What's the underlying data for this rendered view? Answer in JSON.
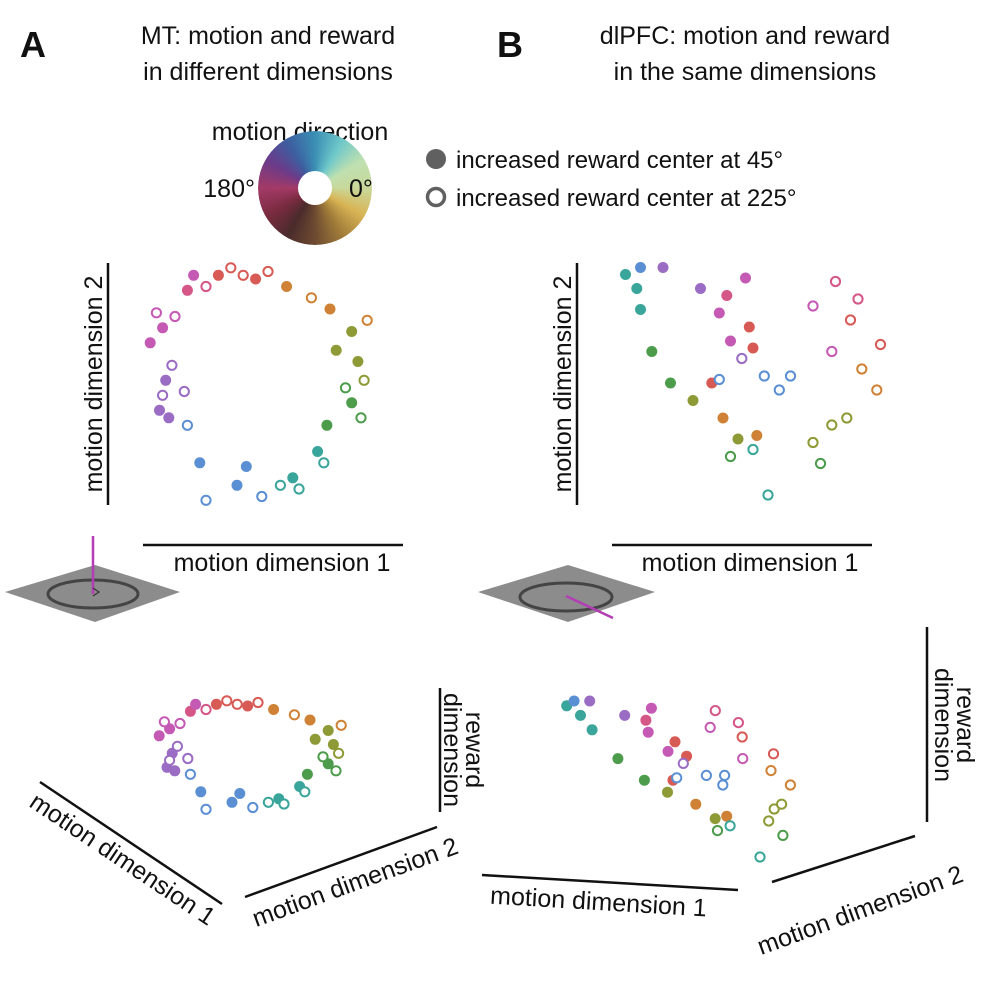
{
  "panels": {
    "A": {
      "letter": "A",
      "title_line1": "MT: motion and reward",
      "title_line2": "in different dimensions"
    },
    "B": {
      "letter": "B",
      "title_line1": "dlPFC: motion and reward",
      "title_line2": "in the same dimensions"
    }
  },
  "color_wheel": {
    "title": "motion direction",
    "label_180": "180°",
    "label_0": "0°"
  },
  "legend": {
    "filled": "increased reward center at 45°",
    "open": "increased reward center at 225°",
    "marker_color": "#606060"
  },
  "axes": {
    "motion_dim_1": "motion dimension 1",
    "motion_dim_2": "motion dimension 2",
    "reward_line1": "reward",
    "reward_line2": "dimension"
  },
  "colors": {
    "magenta": "#c55ab5",
    "purple": "#9a6cc3",
    "blue": "#5b8fd3",
    "teal": "#3aa59a",
    "green": "#4c9c4c",
    "olive": "#8e9a35",
    "orange": "#cf8236",
    "red": "#d85a55",
    "pink": "#d55788",
    "plane": "#8c8c8c",
    "stick": "#b43cb4"
  },
  "chart_data": [
    {
      "type": "scatter",
      "title": "MT: motion and reward in different dimensions",
      "xlabel": "motion dimension 1",
      "ylabel": "motion dimension 2",
      "view": "2D projection",
      "series": [
        {
          "name": "increased reward center at 45°",
          "marker": "filled",
          "points": [
            [
              -1.9,
              0.55,
              "magenta"
            ],
            [
              -1.7,
              0.75,
              "magenta"
            ],
            [
              -1.3,
              1.25,
              "pink"
            ],
            [
              -0.8,
              1.45,
              "red"
            ],
            [
              -0.2,
              1.4,
              "red"
            ],
            [
              0.3,
              1.3,
              "orange"
            ],
            [
              1.0,
              1.0,
              "orange"
            ],
            [
              1.35,
              0.7,
              "olive"
            ],
            [
              1.45,
              0.3,
              "olive"
            ],
            [
              1.35,
              -0.25,
              "green"
            ],
            [
              0.8,
              -0.9,
              "teal"
            ],
            [
              0.4,
              -1.25,
              "teal"
            ],
            [
              -0.5,
              -1.35,
              "blue"
            ],
            [
              -1.1,
              -1.05,
              "blue"
            ],
            [
              -1.6,
              -0.45,
              "purple"
            ],
            [
              -1.65,
              0.05,
              "purple"
            ],
            [
              -1.75,
              -0.35,
              "purple"
            ],
            [
              -1.2,
              1.45,
              "magenta"
            ],
            [
              1.1,
              0.45,
              "olive"
            ],
            [
              0.95,
              -0.55,
              "green"
            ],
            [
              -0.35,
              -1.1,
              "blue"
            ]
          ]
        },
        {
          "name": "increased reward center at 225°",
          "marker": "open",
          "points": [
            [
              -1.8,
              0.95,
              "magenta"
            ],
            [
              -1.5,
              0.9,
              "magenta"
            ],
            [
              -1.0,
              1.3,
              "pink"
            ],
            [
              -0.6,
              1.55,
              "red"
            ],
            [
              0.0,
              1.5,
              "red"
            ],
            [
              0.7,
              1.15,
              "orange"
            ],
            [
              1.6,
              0.85,
              "orange"
            ],
            [
              1.55,
              0.05,
              "olive"
            ],
            [
              1.5,
              -0.45,
              "green"
            ],
            [
              0.9,
              -1.05,
              "teal"
            ],
            [
              0.5,
              -1.4,
              "teal"
            ],
            [
              -0.1,
              -1.5,
              "blue"
            ],
            [
              -1.0,
              -1.55,
              "blue"
            ],
            [
              -1.3,
              -0.55,
              "blue"
            ],
            [
              -1.55,
              0.25,
              "purple"
            ],
            [
              -1.35,
              -0.1,
              "purple"
            ],
            [
              -1.7,
              -0.15,
              "purple"
            ],
            [
              0.2,
              -1.35,
              "teal"
            ],
            [
              1.25,
              -0.05,
              "green"
            ],
            [
              -0.4,
              1.45,
              "red"
            ]
          ]
        }
      ]
    },
    {
      "type": "scatter",
      "title": "dlPFC: motion and reward in the same dimensions",
      "xlabel": "motion dimension 1",
      "ylabel": "motion dimension 2",
      "view": "2D projection",
      "series": [
        {
          "name": "increased reward center at 45°",
          "marker": "filled",
          "points": [
            [
              -1.9,
              1.65,
              "teal"
            ],
            [
              -1.7,
              1.75,
              "blue"
            ],
            [
              -1.75,
              1.45,
              "teal"
            ],
            [
              -1.4,
              1.75,
              "purple"
            ],
            [
              -0.9,
              1.45,
              "purple"
            ],
            [
              -0.65,
              1.1,
              "magenta"
            ],
            [
              -0.55,
              1.35,
              "pink"
            ],
            [
              -0.3,
              1.6,
              "magenta"
            ],
            [
              -0.2,
              0.6,
              "red"
            ],
            [
              -1.55,
              0.55,
              "green"
            ],
            [
              -1.3,
              0.1,
              "green"
            ],
            [
              -1.0,
              -0.15,
              "olive"
            ],
            [
              -0.75,
              0.1,
              "red"
            ],
            [
              -0.6,
              -0.4,
              "orange"
            ],
            [
              -0.4,
              -0.7,
              "olive"
            ],
            [
              -0.15,
              -0.65,
              "orange"
            ],
            [
              -1.7,
              1.15,
              "teal"
            ],
            [
              -0.25,
              0.9,
              "red"
            ],
            [
              -0.5,
              0.7,
              "magenta"
            ]
          ]
        },
        {
          "name": "increased reward center at 225°",
          "marker": "open",
          "points": [
            [
              0.6,
              1.2,
              "magenta"
            ],
            [
              0.9,
              1.55,
              "pink"
            ],
            [
              1.2,
              1.3,
              "pink"
            ],
            [
              1.5,
              0.65,
              "red"
            ],
            [
              0.85,
              0.55,
              "magenta"
            ],
            [
              1.25,
              0.3,
              "orange"
            ],
            [
              1.45,
              0.0,
              "orange"
            ],
            [
              0.85,
              -0.5,
              "olive"
            ],
            [
              0.6,
              -0.75,
              "olive"
            ],
            [
              0.3,
              0.2,
              "blue"
            ],
            [
              -0.05,
              0.2,
              "blue"
            ],
            [
              -0.35,
              0.45,
              "purple"
            ],
            [
              -0.2,
              -0.85,
              "teal"
            ],
            [
              -0.5,
              -0.95,
              "green"
            ],
            [
              0.0,
              -1.5,
              "teal"
            ],
            [
              0.15,
              0.0,
              "blue"
            ],
            [
              1.05,
              -0.4,
              "olive"
            ],
            [
              0.7,
              -1.05,
              "green"
            ],
            [
              -0.65,
              0.15,
              "blue"
            ],
            [
              1.1,
              1.0,
              "red"
            ]
          ]
        }
      ]
    },
    {
      "type": "scatter",
      "title": "MT: motion and reward in different dimensions (3D view)",
      "xlabel": "motion dimension 1",
      "ylabel": "motion dimension 2",
      "zlabel": "reward dimension",
      "view": "3D projection",
      "series": [
        {
          "name": "increased reward center at 45°",
          "marker": "filled",
          "points": [
            [
              -1.9,
              0.55,
              "magenta"
            ],
            [
              -1.7,
              0.75,
              "magenta"
            ],
            [
              -1.3,
              1.25,
              "pink"
            ],
            [
              -0.8,
              1.45,
              "red"
            ],
            [
              -0.2,
              1.4,
              "red"
            ],
            [
              0.3,
              1.3,
              "orange"
            ],
            [
              1.0,
              1.0,
              "orange"
            ],
            [
              1.35,
              0.7,
              "olive"
            ],
            [
              1.45,
              0.3,
              "olive"
            ],
            [
              1.35,
              -0.25,
              "green"
            ],
            [
              0.8,
              -0.9,
              "teal"
            ],
            [
              0.4,
              -1.25,
              "teal"
            ],
            [
              -0.5,
              -1.35,
              "blue"
            ],
            [
              -1.1,
              -1.05,
              "blue"
            ],
            [
              -1.6,
              -0.45,
              "purple"
            ],
            [
              -1.65,
              0.05,
              "purple"
            ],
            [
              -1.75,
              -0.35,
              "purple"
            ],
            [
              -1.2,
              1.45,
              "magenta"
            ],
            [
              1.1,
              0.45,
              "olive"
            ],
            [
              0.95,
              -0.55,
              "green"
            ],
            [
              -0.35,
              -1.1,
              "blue"
            ]
          ]
        },
        {
          "name": "increased reward center at 225°",
          "marker": "open",
          "points": [
            [
              -1.8,
              0.95,
              "magenta"
            ],
            [
              -1.5,
              0.9,
              "magenta"
            ],
            [
              -1.0,
              1.3,
              "pink"
            ],
            [
              -0.6,
              1.55,
              "red"
            ],
            [
              0.0,
              1.5,
              "red"
            ],
            [
              0.7,
              1.15,
              "orange"
            ],
            [
              1.6,
              0.85,
              "orange"
            ],
            [
              1.55,
              0.05,
              "olive"
            ],
            [
              1.5,
              -0.45,
              "green"
            ],
            [
              0.9,
              -1.05,
              "teal"
            ],
            [
              0.5,
              -1.4,
              "teal"
            ],
            [
              -0.1,
              -1.5,
              "blue"
            ],
            [
              -1.0,
              -1.55,
              "blue"
            ],
            [
              -1.3,
              -0.55,
              "blue"
            ],
            [
              -1.55,
              0.25,
              "purple"
            ],
            [
              -1.35,
              -0.1,
              "purple"
            ],
            [
              -1.7,
              -0.15,
              "purple"
            ],
            [
              0.2,
              -1.35,
              "teal"
            ],
            [
              1.25,
              -0.05,
              "green"
            ],
            [
              -0.4,
              1.45,
              "red"
            ]
          ]
        }
      ]
    },
    {
      "type": "scatter",
      "title": "dlPFC: motion and reward in the same dimensions (3D view)",
      "xlabel": "motion dimension 1",
      "ylabel": "motion dimension 2",
      "zlabel": "reward dimension",
      "view": "3D projection",
      "series": [
        {
          "name": "increased reward center at 45°",
          "marker": "filled",
          "points": [
            [
              -1.9,
              1.65,
              "teal"
            ],
            [
              -1.7,
              1.75,
              "blue"
            ],
            [
              -1.75,
              1.45,
              "teal"
            ],
            [
              -1.4,
              1.75,
              "purple"
            ],
            [
              -0.9,
              1.45,
              "purple"
            ],
            [
              -0.65,
              1.1,
              "magenta"
            ],
            [
              -0.55,
              1.35,
              "pink"
            ],
            [
              -0.3,
              1.6,
              "magenta"
            ],
            [
              -0.2,
              0.6,
              "red"
            ],
            [
              -1.55,
              0.55,
              "green"
            ],
            [
              -1.3,
              0.1,
              "green"
            ],
            [
              -1.0,
              -0.15,
              "olive"
            ],
            [
              -0.75,
              0.1,
              "red"
            ],
            [
              -0.6,
              -0.4,
              "orange"
            ],
            [
              -0.4,
              -0.7,
              "olive"
            ],
            [
              -0.15,
              -0.65,
              "orange"
            ],
            [
              -1.7,
              1.15,
              "teal"
            ],
            [
              -0.25,
              0.9,
              "red"
            ],
            [
              -0.5,
              0.7,
              "magenta"
            ]
          ]
        },
        {
          "name": "increased reward center at 225°",
          "marker": "open",
          "points": [
            [
              0.6,
              1.2,
              "magenta"
            ],
            [
              0.9,
              1.55,
              "pink"
            ],
            [
              1.2,
              1.3,
              "pink"
            ],
            [
              1.5,
              0.65,
              "red"
            ],
            [
              0.85,
              0.55,
              "magenta"
            ],
            [
              1.25,
              0.3,
              "orange"
            ],
            [
              1.45,
              0.0,
              "orange"
            ],
            [
              0.85,
              -0.5,
              "olive"
            ],
            [
              0.6,
              -0.75,
              "olive"
            ],
            [
              0.3,
              0.2,
              "blue"
            ],
            [
              -0.05,
              0.2,
              "blue"
            ],
            [
              -0.35,
              0.45,
              "purple"
            ],
            [
              -0.2,
              -0.85,
              "teal"
            ],
            [
              -0.5,
              -0.95,
              "green"
            ],
            [
              0.0,
              -1.5,
              "teal"
            ],
            [
              0.15,
              0.0,
              "blue"
            ],
            [
              1.05,
              -0.4,
              "olive"
            ],
            [
              0.7,
              -1.05,
              "green"
            ],
            [
              -0.65,
              0.15,
              "blue"
            ],
            [
              1.1,
              1.0,
              "red"
            ]
          ]
        }
      ]
    }
  ]
}
